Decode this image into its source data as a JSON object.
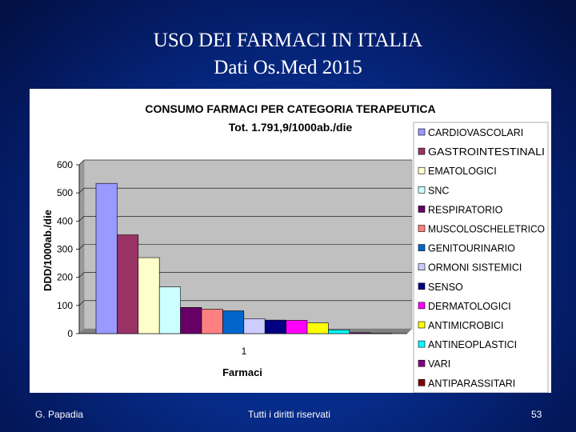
{
  "slide": {
    "title_line1": "USO DEI FARMACI IN ITALIA",
    "title_line2": "Dati Os.Med 2015"
  },
  "footer": {
    "author": "G. Papadia",
    "rights": "Tutti i diritti riservati",
    "page_number": "53"
  },
  "chart_data": {
    "type": "bar",
    "title": "CONSUMO FARMACI PER CATEGORIA TERAPEUTICA",
    "subtitle": "Tot. 1.791,9/1000ab./die",
    "xlabel": "Farmaci",
    "ylabel": "DDD/1000ab./die",
    "categories": [
      "1"
    ],
    "ylim": [
      0,
      600
    ],
    "yticks": [
      0,
      100,
      200,
      300,
      400,
      500,
      600
    ],
    "grid": true,
    "legend_position": "right",
    "plot_background": "#c0c0c0",
    "series": [
      {
        "name": "CARDIOVASCOLARI",
        "values": [
          534
        ],
        "color": "#9999ff"
      },
      {
        "name": "GASTROINTESTINALI",
        "values": [
          351
        ],
        "color": "#993366"
      },
      {
        "name": "EMATOLOGICI",
        "values": [
          270
        ],
        "color": "#ffffcc"
      },
      {
        "name": "SNC",
        "values": [
          166
        ],
        "color": "#ccffff"
      },
      {
        "name": "RESPIRATORIO",
        "values": [
          93
        ],
        "color": "#660066"
      },
      {
        "name": "MUSCOLOSCHELETRICO",
        "values": [
          87
        ],
        "color": "#ff8080"
      },
      {
        "name": "GENITOURINARIO",
        "values": [
          81
        ],
        "color": "#0066cc"
      },
      {
        "name": "ORMONI SISTEMICI",
        "values": [
          53
        ],
        "color": "#ccccff"
      },
      {
        "name": "SENSO",
        "values": [
          48
        ],
        "color": "#000080"
      },
      {
        "name": "DERMATOLOGICI",
        "values": [
          47
        ],
        "color": "#ff00ff"
      },
      {
        "name": "ANTIMICROBICI",
        "values": [
          38
        ],
        "color": "#ffff00"
      },
      {
        "name": "ANTINEOPLASTICI",
        "values": [
          13
        ],
        "color": "#00ffff"
      },
      {
        "name": "VARI",
        "values": [
          3
        ],
        "color": "#800080"
      },
      {
        "name": "ANTIPARASSITARI",
        "values": [
          1
        ],
        "color": "#800000"
      }
    ]
  }
}
